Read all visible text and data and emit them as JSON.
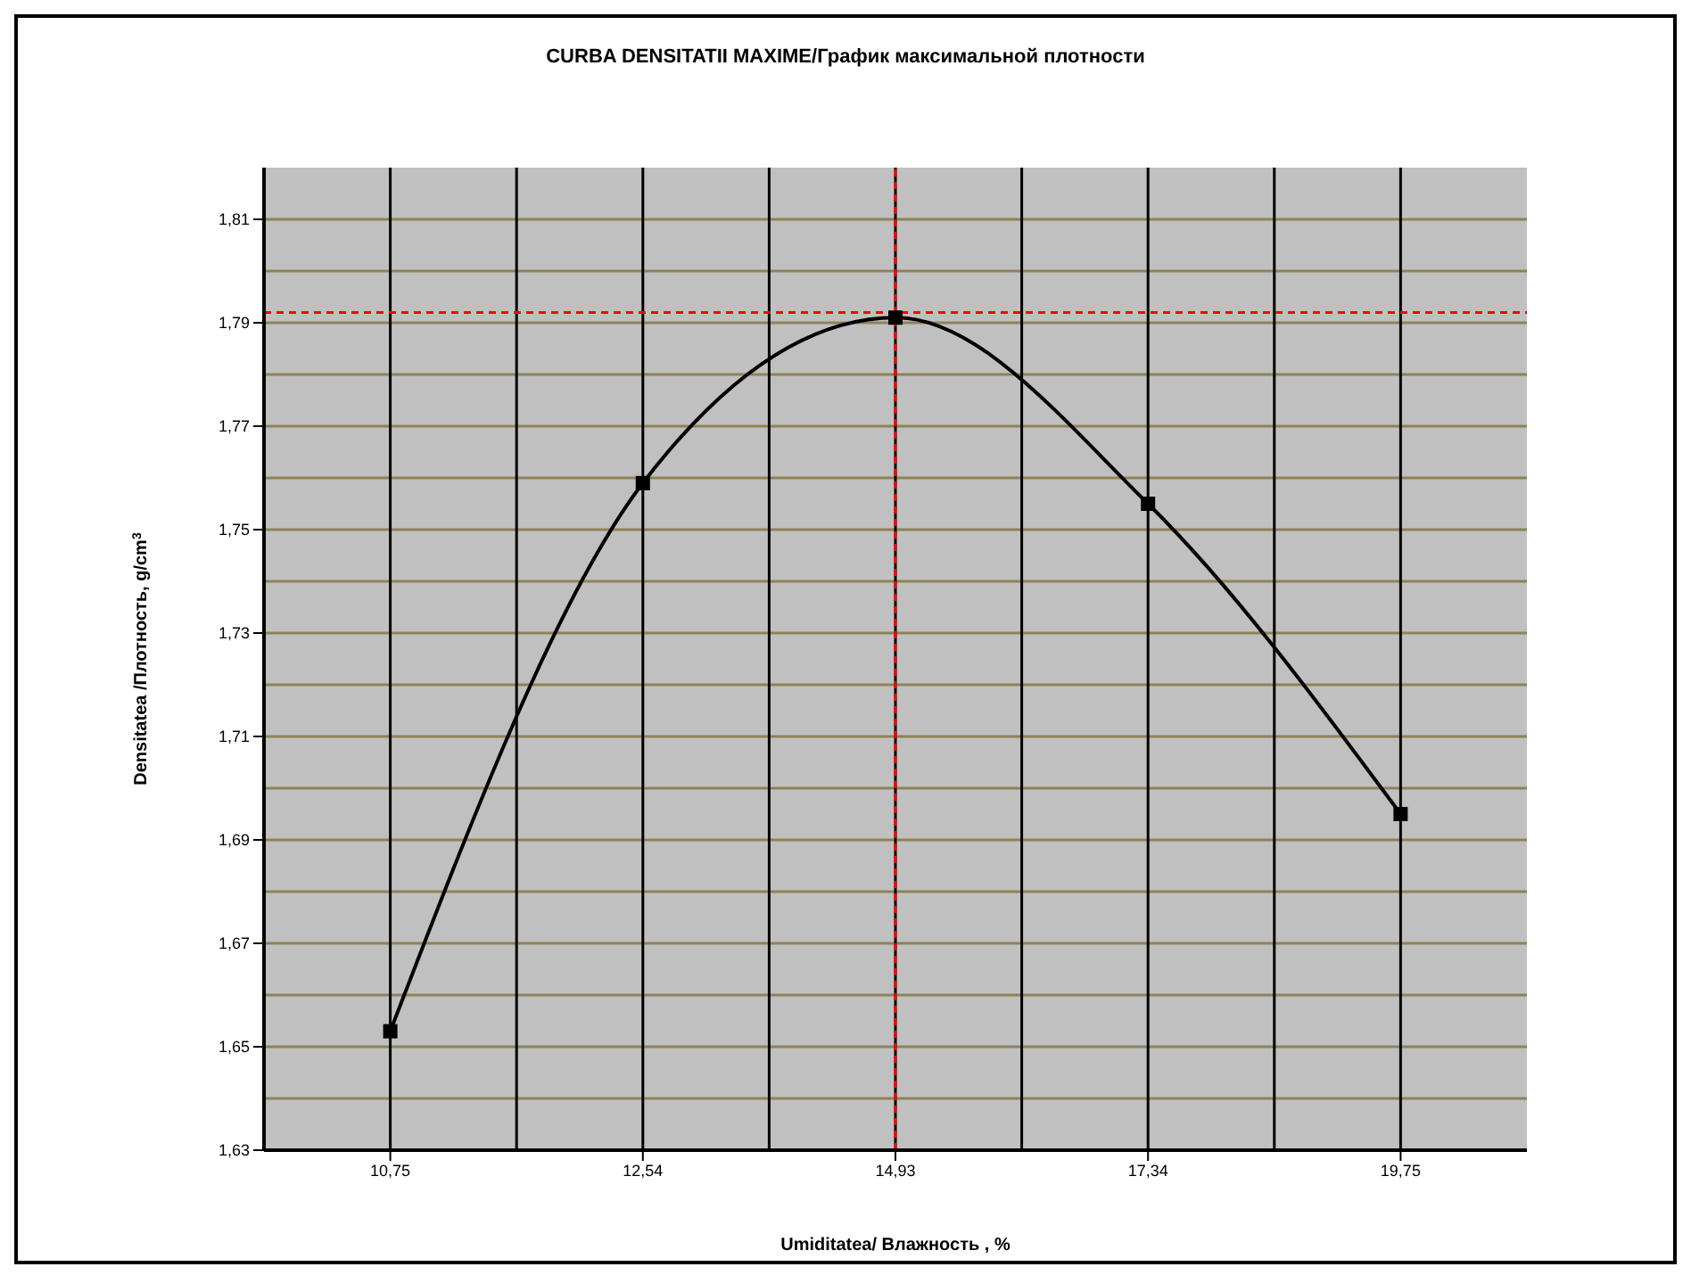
{
  "chart_data": {
    "type": "line",
    "title": "CURBA DENSITATII  MAXIME/График максимальной плотности",
    "xlabel": "Umiditatea/ Влажность , %",
    "ylabel": "Densitatea /Плотность, g/cm$^{3}$",
    "categories": [
      "10,75",
      "12,54",
      "14,93",
      "17,34",
      "19,75"
    ],
    "series": [
      {
        "color": "#000000",
        "values": [
          1.653,
          1.759,
          1.791,
          1.755,
          1.695
        ]
      }
    ],
    "ylim": [
      1.63,
      1.82
    ],
    "yticks": [
      {
        "value": 1.63,
        "label": "1,63"
      },
      {
        "value": 1.65,
        "label": "1,65"
      },
      {
        "value": 1.67,
        "label": "1,67"
      },
      {
        "value": 1.69,
        "label": "1,69"
      },
      {
        "value": 1.71,
        "label": "1,71"
      },
      {
        "value": 1.73,
        "label": "1,73"
      },
      {
        "value": 1.75,
        "label": "1,75"
      },
      {
        "value": 1.77,
        "label": "1,77"
      },
      {
        "value": 1.79,
        "label": "1,79"
      },
      {
        "value": 1.81,
        "label": "1,81"
      }
    ],
    "ref_lines": [
      {
        "axis": "y",
        "value": 1.792,
        "color": "#ff0000",
        "line_style": "dashed"
      },
      {
        "axis": "x",
        "value": "14,93",
        "color": "#ff0000",
        "line_style": "dashed"
      }
    ],
    "grid": true,
    "marker": "square",
    "line_style": "solid"
  }
}
